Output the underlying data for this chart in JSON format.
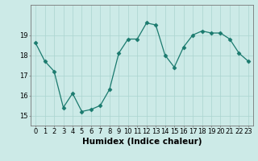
{
  "x": [
    0,
    1,
    2,
    3,
    4,
    5,
    6,
    7,
    8,
    9,
    10,
    11,
    12,
    13,
    14,
    15,
    16,
    17,
    18,
    19,
    20,
    21,
    22,
    23
  ],
  "y": [
    18.6,
    17.7,
    17.2,
    15.4,
    16.1,
    15.2,
    15.3,
    15.5,
    16.3,
    18.1,
    18.8,
    18.8,
    19.6,
    19.5,
    18.0,
    17.4,
    18.4,
    19.0,
    19.2,
    19.1,
    19.1,
    18.8,
    18.1,
    17.7
  ],
  "line_color": "#1a7a6e",
  "marker": "D",
  "marker_size": 2.5,
  "bg_color": "#cceae7",
  "grid_color": "#aad4d0",
  "xlabel": "Humidex (Indice chaleur)",
  "ylim": [
    14.5,
    20.5
  ],
  "xlim": [
    -0.5,
    23.5
  ],
  "yticks": [
    15,
    16,
    17,
    18,
    19
  ],
  "xticks": [
    0,
    1,
    2,
    3,
    4,
    5,
    6,
    7,
    8,
    9,
    10,
    11,
    12,
    13,
    14,
    15,
    16,
    17,
    18,
    19,
    20,
    21,
    22,
    23
  ],
  "tick_fontsize": 6,
  "xlabel_fontsize": 7.5,
  "spine_color": "#777777"
}
